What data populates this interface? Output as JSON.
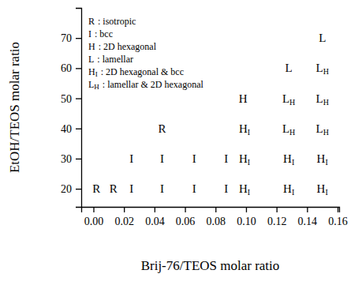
{
  "chart_data": {
    "type": "scatter",
    "marker": "text",
    "x_label": "Brij-76/TEOS molar ratio",
    "y_label": "EtOH/TEOS molar ratio",
    "xlim": [
      -0.008,
      0.161
    ],
    "ylim": [
      14,
      80
    ],
    "xticks": [
      {
        "value": 0,
        "label": "0.00"
      },
      {
        "value": 0.02,
        "label": "0.02"
      },
      {
        "value": 0.04,
        "label": "0.04"
      },
      {
        "value": 0.06,
        "label": "0.06"
      },
      {
        "value": 0.08,
        "label": "0.08"
      },
      {
        "value": 0.1,
        "label": "0.10"
      },
      {
        "value": 0.12,
        "label": "0.12"
      },
      {
        "value": 0.14,
        "label": "0.14"
      },
      {
        "value": 0.16,
        "label": "0.16"
      }
    ],
    "yticks": [
      20,
      30,
      40,
      50,
      60,
      70
    ],
    "x": [
      0.002,
      0.013,
      0.025,
      0.045,
      0.066,
      0.087,
      0.099,
      0.128,
      0.15,
      0.025,
      0.045,
      0.066,
      0.087,
      0.099,
      0.128,
      0.15,
      0.045,
      0.099,
      0.128,
      0.15,
      0.098,
      0.128,
      0.15,
      0.128,
      0.15,
      0.15
    ],
    "values": [
      20,
      20,
      20,
      20,
      20,
      20,
      20,
      20,
      20,
      30,
      30,
      30,
      30,
      30,
      30,
      30,
      40,
      40,
      40,
      40,
      50,
      50,
      50,
      60,
      60,
      70
    ],
    "labels": [
      "R",
      "R",
      "I",
      "I",
      "I",
      "I",
      "H",
      "H",
      "H",
      "I",
      "I",
      "I",
      "I",
      "H",
      "H",
      "H",
      "R",
      "H",
      "L",
      "L",
      "H",
      "L",
      "L",
      "L",
      "L",
      "L"
    ],
    "subscripts": [
      null,
      null,
      null,
      null,
      null,
      null,
      "I",
      "I",
      "I",
      null,
      null,
      null,
      null,
      "I",
      "I",
      "I",
      null,
      "I",
      "H",
      "H",
      null,
      "H",
      "H",
      null,
      "H",
      null
    ],
    "annotations": [
      {
        "symbol": "R",
        "sub": null,
        "text": ": isotropic"
      },
      {
        "symbol": "I",
        "sub": null,
        "text": ": bcc"
      },
      {
        "symbol": "H",
        "sub": null,
        "text": ": 2D hexagonal"
      },
      {
        "symbol": "L",
        "sub": null,
        "text": ": lamellar"
      },
      {
        "symbol": "H",
        "sub": "I",
        "text": ": 2D hexagonal & bcc"
      },
      {
        "symbol": "L",
        "sub": "H",
        "text": ": lamellar & 2D hexagonal"
      }
    ]
  }
}
